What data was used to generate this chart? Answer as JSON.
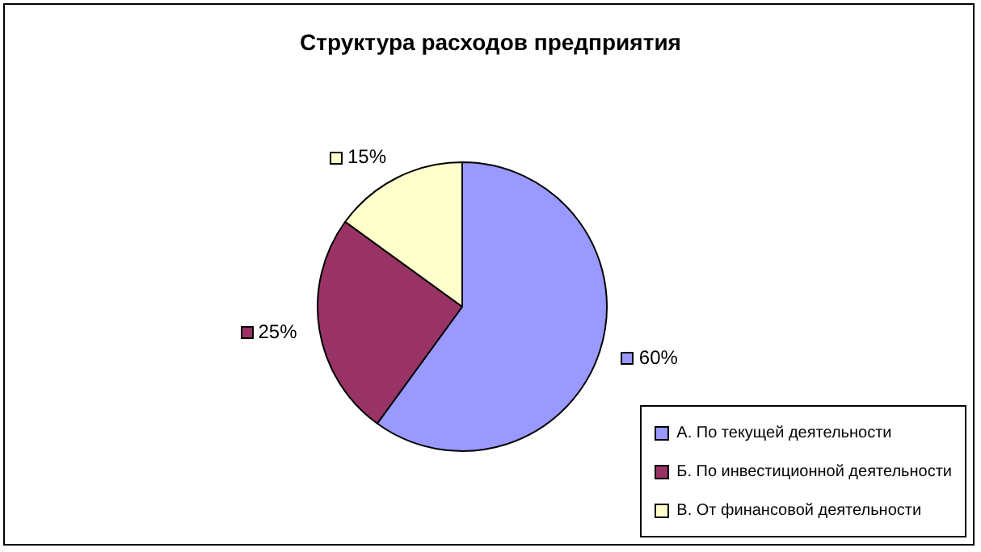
{
  "chart_data": {
    "type": "pie",
    "title": "Структура расходов предприятия",
    "categories": [
      "А. По текущей деятельности",
      "Б. По инвестиционной деятельности",
      "В. От финансовой деятельности"
    ],
    "values": [
      60,
      25,
      15
    ],
    "colors": [
      "#9999ff",
      "#993366",
      "#ffffcc"
    ],
    "value_labels": [
      "60%",
      "25%",
      "15%"
    ],
    "legend": "bottom right"
  }
}
